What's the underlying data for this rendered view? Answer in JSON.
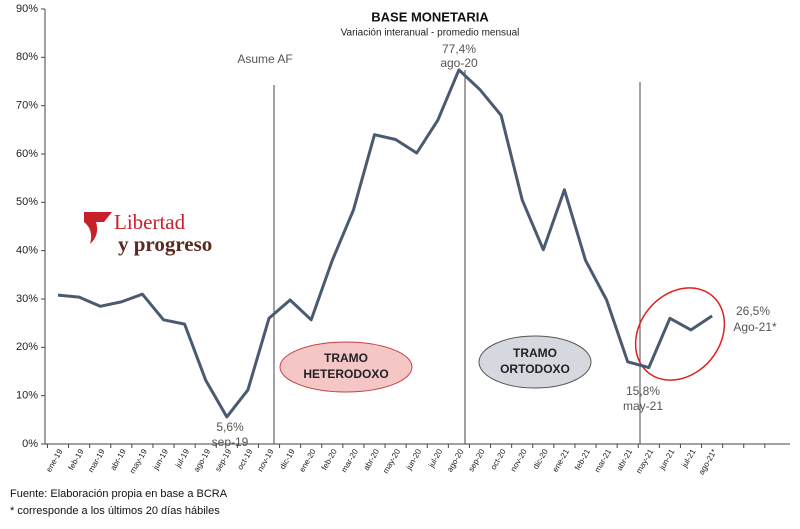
{
  "chart_data": {
    "type": "line",
    "title": "BASE MONETARIA",
    "subtitle": "Variación interanual - promedio mensual",
    "categories": [
      "ene-19",
      "feb-19",
      "mar-19",
      "abr-19",
      "may-19",
      "jun-19",
      "jul-19",
      "ago-19",
      "sep-19",
      "oct-19",
      "nov-19",
      "dic-19",
      "ene-20",
      "feb-20",
      "mar-20",
      "abr-20",
      "may-20",
      "jun-20",
      "jul-20",
      "ago-20",
      "sep-20",
      "oct-20",
      "nov-20",
      "dic-20",
      "ene-21",
      "feb-21",
      "mar-21",
      "abr-21",
      "may-21",
      "jun-21",
      "jul-21",
      "ago-21*",
      null,
      null,
      null
    ],
    "series": [
      {
        "name": "Base monetaria",
        "color": "#4a5a70",
        "values": [
          30.8,
          30.4,
          28.5,
          29.4,
          31,
          25.7,
          24.8,
          13.2,
          5.6,
          11.2,
          26,
          29.8,
          25.7,
          38,
          48.4,
          64,
          63,
          60.2,
          67,
          77.4,
          73.3,
          68,
          50.5,
          40.2,
          52.6,
          38,
          29.8,
          17,
          15.8,
          26,
          23.6,
          26.5,
          null,
          null,
          null
        ]
      }
    ],
    "ylim": [
      0,
      90
    ],
    "yticks": [
      {
        "value": 0,
        "label": "0%"
      },
      {
        "value": 10,
        "label": "10%"
      },
      {
        "value": 20,
        "label": "20%"
      },
      {
        "value": 30,
        "label": "30%"
      },
      {
        "value": 40,
        "label": "40%"
      },
      {
        "value": 50,
        "label": "50%"
      },
      {
        "value": 60,
        "label": "60%"
      },
      {
        "value": 70,
        "label": "70%"
      },
      {
        "value": 80,
        "label": "80%"
      },
      {
        "value": 90,
        "label": "90%"
      }
    ],
    "annotations": [
      "Asume AF",
      "77,4%",
      "ago-20",
      "5,6%",
      "sep-19",
      "15,8%",
      "may-21",
      "26,5%",
      "Ago-21*",
      "TRAMO",
      "HETERODOXO",
      "TRAMO",
      "ORTODOXO"
    ],
    "logo": [
      "Libertad",
      "y progreso"
    ],
    "footnotes": [
      "Fuente: Elaboración propia en base a BCRA",
      "* corresponde a los últimos 20 días hábiles"
    ]
  }
}
